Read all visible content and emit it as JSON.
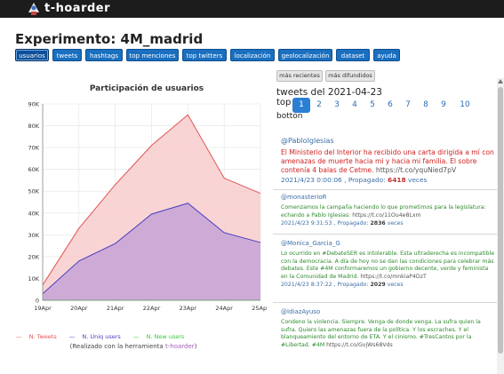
{
  "app": {
    "name": "t-hoarder"
  },
  "page": {
    "title": "Experimento: 4M_madrid"
  },
  "nav": [
    {
      "label": "usuarios",
      "active": true
    },
    {
      "label": "tweets"
    },
    {
      "label": "hashtags"
    },
    {
      "label": "top menciones"
    },
    {
      "label": "top twitters"
    },
    {
      "label": "localización"
    },
    {
      "label": "geolocalización"
    },
    {
      "label": "dataset"
    },
    {
      "label": "ayuda"
    }
  ],
  "sort_buttons": [
    "más recientes",
    "más difundidos"
  ],
  "tweets_panel": {
    "date_label": "tweets del 2021-04-23",
    "top_label": "top",
    "bottom_label": "botton",
    "pages": [
      "1",
      "2",
      "3",
      "4",
      "5",
      "6",
      "7",
      "8",
      "9",
      "10"
    ],
    "active_page": "1",
    "tweets": [
      {
        "user": "@PabloIglesias",
        "text": "El Ministerio del Interior ha recibido una carta dirigida a mí con amenazas de muerte hacia mi y hacia mi familia. El sobre contenía 4 balas de Cetme.",
        "link": "https://t.co/yquNied7pV",
        "date": "2021/4/23 0:00:06",
        "propagado_label": "Propagado:",
        "propagado": "6418",
        "veces": "veces"
      },
      {
        "user": "@monasterioR",
        "text": "Comenzamos la campaña haciendo lo que prometimos para la legislatura: echando a Pablo Iglesias:",
        "link": "https://t.co/11Ou4e8Lxm",
        "date": "2021/4/23 9:31:53",
        "propagado_label": "Propagado:",
        "propagado": "2836",
        "veces": "veces"
      },
      {
        "user": "@Monica_Garcia_G",
        "text": "Lo ocurrido en #DebateSER es intolerable. Esta ultraderecha es incompatible con la democracia. A día de hoy no se dan las condiciones para celebrar más debates. Este #4M conformaremos un gobierno decente, verde y feminista en la Comunidad de Madrid.",
        "link": "https://t.co/mnkiaP4DzT",
        "date": "2021/4/23 8:37:22",
        "propagado_label": "Propagado:",
        "propagado": "2029",
        "veces": "veces"
      },
      {
        "user": "@IdiazAyuso",
        "text": "Condeno la violencia. Siempre. Venga de donde venga. La sufra quien la sufra. Quiero las amenazas fuera de la política. Y los escraches. Y el blanqueamiento del entorno de ETA. Y el cinismo. #TresCantos por la #Libertad. #4M",
        "link": "https://t.co/GvjWs68Vds",
        "date": "",
        "propagado_label": "",
        "propagado": "",
        "veces": ""
      }
    ]
  },
  "chart_data": {
    "type": "area",
    "title": "Participación de usuarios",
    "categories": [
      "19Apr",
      "20Apr",
      "21Apr",
      "22Apr",
      "23Apr",
      "24Apr",
      "25Apr"
    ],
    "y_ticks": [
      "0",
      "10K",
      "20K",
      "30K",
      "40K",
      "50K",
      "60K",
      "70K",
      "80K",
      "90K"
    ],
    "ylim": [
      0,
      90000
    ],
    "series": [
      {
        "name": "N. Tweets",
        "color": "#e05555",
        "fill": "#f8cccc",
        "values": [
          7000,
          33000,
          53000,
          71000,
          85000,
          56000,
          49000
        ]
      },
      {
        "name": "N. Uniq users",
        "color": "#4a3fc0",
        "fill": "#c7a3d6",
        "values": [
          3000,
          18000,
          26000,
          39500,
          44500,
          31000,
          26500
        ]
      },
      {
        "name": "N. New users",
        "color": "#33cc33",
        "fill": "none",
        "values": [
          0,
          0,
          0,
          0,
          0,
          0,
          0
        ]
      }
    ]
  },
  "legend": [
    {
      "prefix": "—",
      "name": "N. Tweets",
      "color": "#e05555"
    },
    {
      "prefix": "—",
      "name": "N. Uniq users",
      "color": "#4a3fc0"
    },
    {
      "prefix": "—",
      "name": "N. New users",
      "color": "#33cc33"
    }
  ],
  "credit": {
    "before": "(Realizado con la herramienta ",
    "tool": "t-hoarder",
    "after": ")"
  }
}
